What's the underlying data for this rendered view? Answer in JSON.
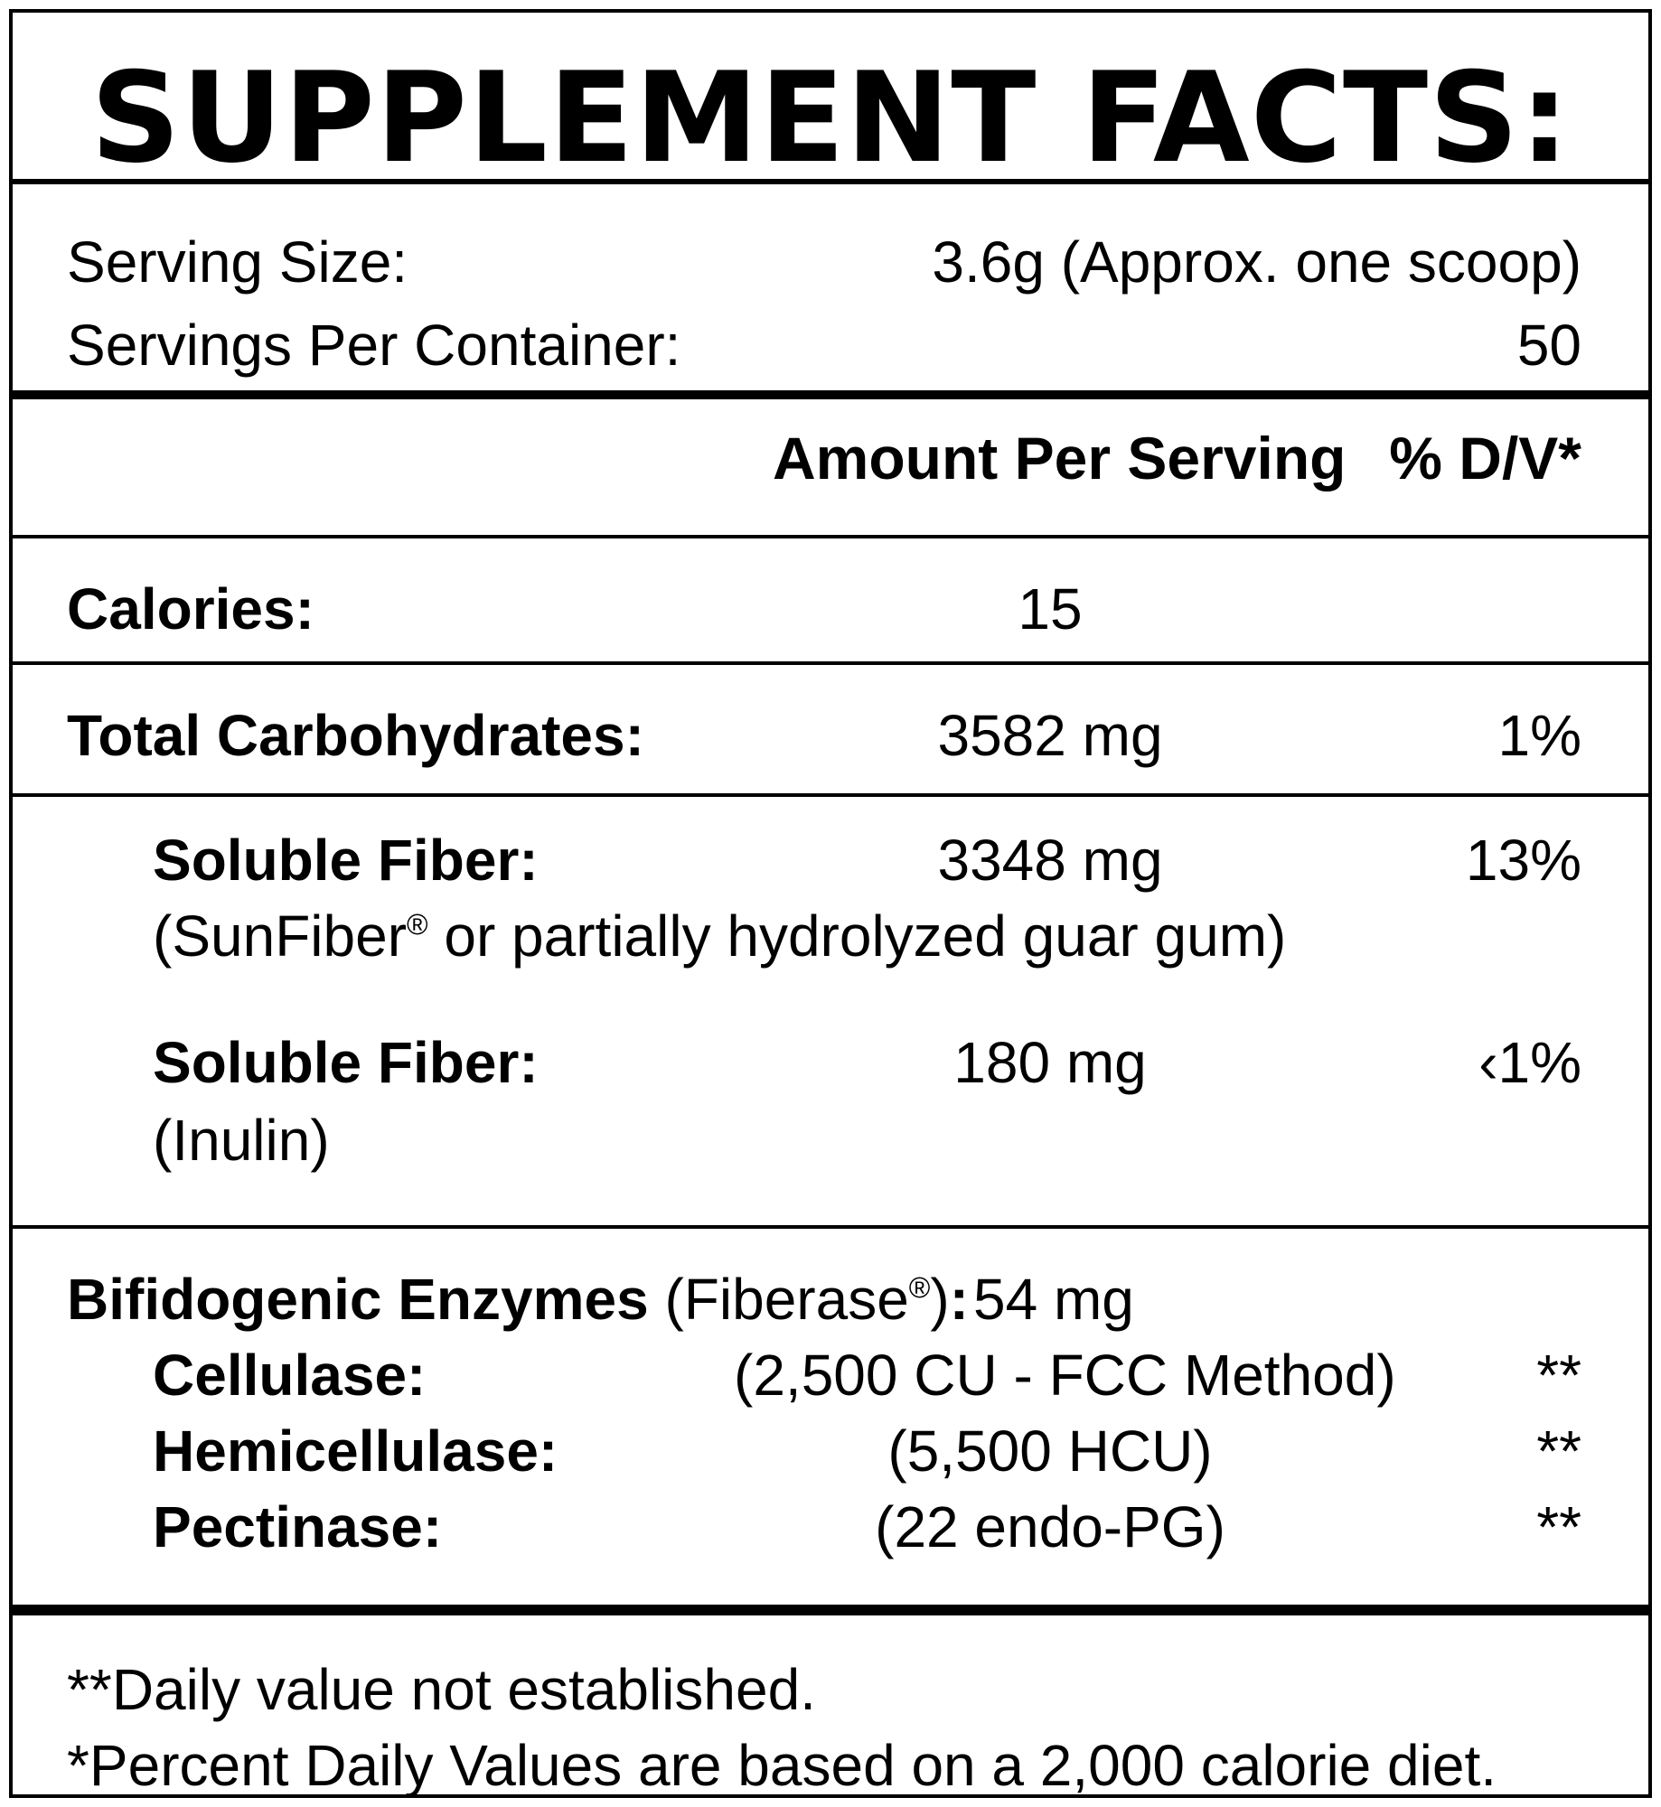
{
  "title": "SUPPLEMENT FACTS:",
  "serving": {
    "size_label": "Serving Size:",
    "size_value": "3.6g (Approx. one scoop)",
    "per_container_label": "Servings Per Container:",
    "per_container_value": "50"
  },
  "columns": {
    "amount": "Amount Per Serving",
    "dv": "% D/V*"
  },
  "calories": {
    "label": "Calories:",
    "amount": "15"
  },
  "carbs": {
    "label": "Total Carbohydrates:",
    "amount": "3582 mg",
    "dv": "1%"
  },
  "fiber1": {
    "label": "Soluble Fiber:",
    "amount": "3348 mg",
    "dv": "13%",
    "note_pre": "(SunFiber",
    "note_mark": "®",
    "note_post": " or partially hydrolyzed guar gum)"
  },
  "fiber2": {
    "label": "Soluble Fiber:",
    "amount": "180 mg",
    "dv": "‹1%",
    "note": "(Inulin)"
  },
  "enzymes": {
    "label": "Bifidogenic Enzymes",
    "paren_pre": "(Fiberase",
    "paren_mark": "®",
    "paren_post": ")",
    "colon": ":",
    "amount": "54 mg",
    "items": [
      {
        "label": "Cellulase:",
        "amount": "(2,500 CU - FCC Method)",
        "dv": "**"
      },
      {
        "label": "Hemicellulase:",
        "amount": "(5,500 HCU)",
        "dv": "**"
      },
      {
        "label": "Pectinase:",
        "amount": "(22 endo-PG)",
        "dv": "**"
      }
    ]
  },
  "footnotes": [
    "**Daily value not established.",
    "*Percent Daily Values are based on a 2,000 calorie diet."
  ]
}
